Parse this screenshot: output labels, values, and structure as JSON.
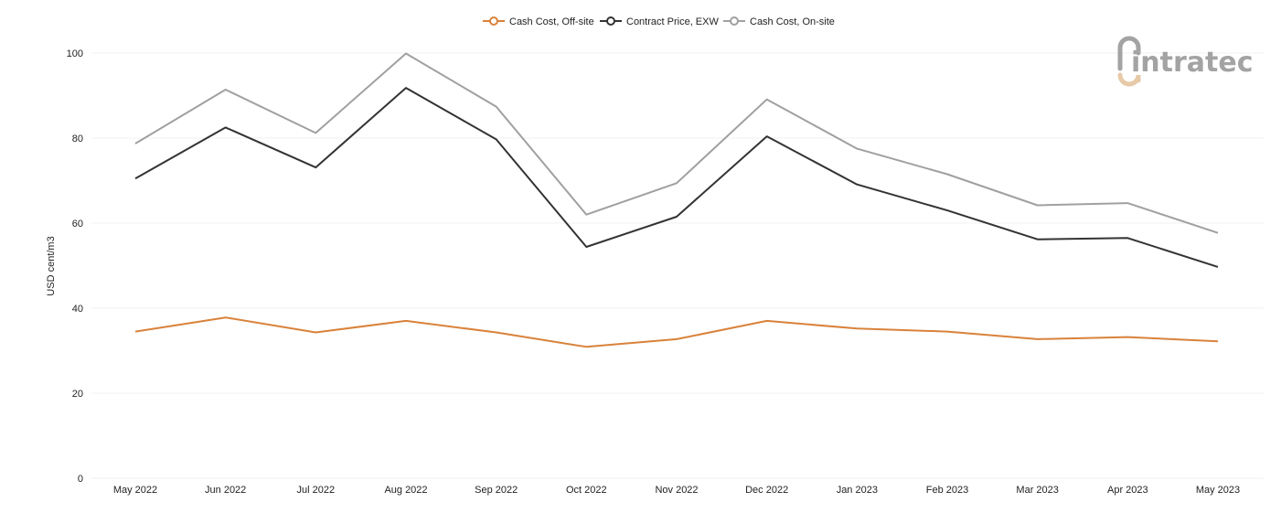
{
  "chart_data": {
    "type": "line",
    "categories": [
      "May 2022",
      "Jun 2022",
      "Jul 2022",
      "Aug 2022",
      "Sep 2022",
      "Oct 2022",
      "Nov 2022",
      "Dec 2022",
      "Jan 2023",
      "Feb 2023",
      "Mar 2023",
      "Apr 2023",
      "May 2023"
    ],
    "series": [
      {
        "name": "Cash Cost, Off-site",
        "color": "#d9823b",
        "values": [
          34.5,
          37.8,
          34.3,
          37.0,
          34.3,
          30.9,
          32.7,
          37.0,
          35.2,
          34.5,
          32.7,
          33.2,
          32.2
        ]
      },
      {
        "name": "Contract Price, EXW",
        "color": "#333333",
        "values": [
          70.5,
          82.5,
          73.1,
          91.8,
          79.7,
          54.4,
          61.5,
          80.4,
          69.1,
          63.0,
          56.2,
          56.5,
          49.7
        ]
      },
      {
        "name": "Cash Cost, On-site",
        "color": "#a0a0a0",
        "values": [
          78.7,
          91.4,
          81.2,
          99.9,
          87.4,
          62.0,
          69.4,
          89.1,
          77.5,
          71.5,
          64.2,
          64.7,
          57.7
        ]
      }
    ],
    "title": "",
    "xlabel": "",
    "ylabel": "USD cent/m3",
    "ylim": [
      0,
      100
    ],
    "yticks": [
      0,
      20,
      40,
      60,
      80,
      100
    ],
    "grid": true,
    "legend_position": "top-center"
  },
  "logo": {
    "text": "intratec"
  }
}
